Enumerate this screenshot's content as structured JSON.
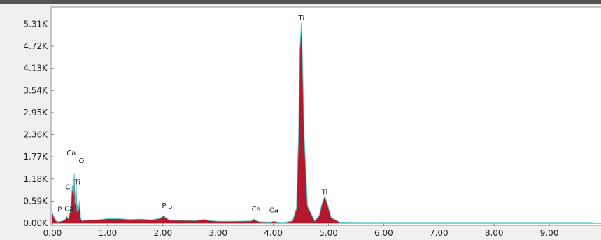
{
  "chart_data": {
    "type": "area",
    "title": "",
    "xlabel": "",
    "ylabel": "",
    "xlim": [
      0,
      9.8
    ],
    "ylim": [
      0,
      5.6
    ],
    "x_ticks": [
      {
        "value": 0,
        "label": "0.00"
      },
      {
        "value": 1,
        "label": "1.00"
      },
      {
        "value": 2,
        "label": "2.00"
      },
      {
        "value": 3,
        "label": "3.00"
      },
      {
        "value": 4,
        "label": "4.00"
      },
      {
        "value": 5,
        "label": "5.00"
      },
      {
        "value": 6,
        "label": "6.00"
      },
      {
        "value": 7,
        "label": "7.00"
      },
      {
        "value": 8,
        "label": "8.00"
      },
      {
        "value": 9,
        "label": "9.00"
      }
    ],
    "y_ticks": [
      {
        "value": 0,
        "label": "0.00K"
      },
      {
        "value": 0.59,
        "label": "0.59K"
      },
      {
        "value": 1.18,
        "label": "1.18K"
      },
      {
        "value": 1.77,
        "label": "1.77K"
      },
      {
        "value": 2.36,
        "label": "2.36K"
      },
      {
        "value": 2.95,
        "label": "2.95K"
      },
      {
        "value": 3.54,
        "label": "3.54K"
      },
      {
        "value": 4.13,
        "label": "4.13K"
      },
      {
        "value": 4.72,
        "label": "4.72K"
      },
      {
        "value": 5.31,
        "label": "5.31K"
      }
    ],
    "spectrum": {
      "x": [
        0.0,
        0.03,
        0.08,
        0.12,
        0.18,
        0.23,
        0.26,
        0.29,
        0.32,
        0.34,
        0.36,
        0.38,
        0.395,
        0.41,
        0.43,
        0.445,
        0.46,
        0.475,
        0.49,
        0.51,
        0.53,
        0.6,
        0.8,
        1.0,
        1.2,
        1.4,
        1.6,
        1.8,
        1.95,
        2.01,
        2.06,
        2.12,
        2.3,
        2.6,
        2.75,
        2.85,
        3.0,
        3.3,
        3.6,
        3.65,
        3.69,
        3.75,
        3.95,
        4.01,
        4.08,
        4.2,
        4.35,
        4.42,
        4.46,
        4.48,
        4.51,
        4.53,
        4.56,
        4.62,
        4.75,
        4.83,
        4.88,
        4.93,
        4.98,
        5.05,
        5.2,
        5.5,
        6.0,
        7.0,
        8.0,
        9.0,
        9.8
      ],
      "y": [
        0.28,
        0.15,
        0.04,
        0.04,
        0.06,
        0.1,
        0.18,
        0.12,
        0.3,
        0.6,
        1.0,
        0.75,
        1.33,
        0.5,
        1.05,
        0.3,
        0.55,
        0.35,
        0.6,
        0.15,
        0.07,
        0.08,
        0.09,
        0.12,
        0.12,
        0.1,
        0.11,
        0.09,
        0.13,
        0.2,
        0.14,
        0.08,
        0.08,
        0.07,
        0.1,
        0.07,
        0.05,
        0.05,
        0.06,
        0.11,
        0.07,
        0.04,
        0.03,
        0.05,
        0.03,
        0.02,
        0.06,
        0.4,
        2.5,
        4.6,
        5.35,
        4.3,
        2.3,
        0.45,
        0.06,
        0.2,
        0.5,
        0.72,
        0.52,
        0.15,
        0.03,
        0.02,
        0.02,
        0.02,
        0.02,
        0.02,
        0.02
      ]
    },
    "peak_labels": [
      {
        "text": "Ti",
        "x": 4.51,
        "y": 5.35
      },
      {
        "text": "Ti",
        "x": 4.93,
        "y": 0.72
      },
      {
        "text": "Ca",
        "x": 0.34,
        "y": 1.75
      },
      {
        "text": "O",
        "x": 0.525,
        "y": 1.55
      },
      {
        "text": "Ti",
        "x": 0.45,
        "y": 0.98
      },
      {
        "text": "C",
        "x": 0.28,
        "y": 0.85
      },
      {
        "text": "Ca",
        "x": 0.3,
        "y": 0.27
      },
      {
        "text": "P",
        "x": 0.13,
        "y": 0.25
      },
      {
        "text": "P",
        "x": 2.02,
        "y": 0.35
      },
      {
        "text": "P",
        "x": 2.13,
        "y": 0.28
      },
      {
        "text": "Ca",
        "x": 3.69,
        "y": 0.26
      },
      {
        "text": "Ca",
        "x": 4.01,
        "y": 0.23
      }
    ],
    "colors": {
      "fill": "#b5182c",
      "outline": "#4fc8c8",
      "background": "#ffffff",
      "frame": "#9090a0"
    },
    "grid": false,
    "legend": "none"
  }
}
